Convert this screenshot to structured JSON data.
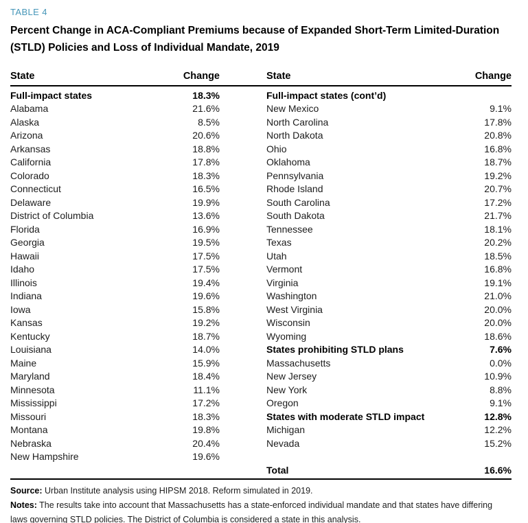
{
  "accent_color": "#4696b8",
  "table_label": "TABLE 4",
  "title_lines": [
    "Percent Change in ACA-Compliant Premiums because of Expanded Short-Term Limited-Duration",
    "(STLD) Policies and Loss of Individual Mandate, 2019"
  ],
  "table": {
    "headers": [
      "State",
      "Change",
      "State",
      "Change"
    ],
    "left_rows": [
      {
        "state": "Full-impact states",
        "change": "18.3%",
        "bold": true
      },
      {
        "state": "Alabama",
        "change": "21.6%",
        "bold": false
      },
      {
        "state": "Alaska",
        "change": "8.5%",
        "bold": false
      },
      {
        "state": "Arizona",
        "change": "20.6%",
        "bold": false
      },
      {
        "state": "Arkansas",
        "change": "18.8%",
        "bold": false
      },
      {
        "state": "California",
        "change": "17.8%",
        "bold": false
      },
      {
        "state": "Colorado",
        "change": "18.3%",
        "bold": false
      },
      {
        "state": "Connecticut",
        "change": "16.5%",
        "bold": false
      },
      {
        "state": "Delaware",
        "change": "19.9%",
        "bold": false
      },
      {
        "state": "District of Columbia",
        "change": "13.6%",
        "bold": false
      },
      {
        "state": "Florida",
        "change": "16.9%",
        "bold": false
      },
      {
        "state": "Georgia",
        "change": "19.5%",
        "bold": false
      },
      {
        "state": "Hawaii",
        "change": "17.5%",
        "bold": false
      },
      {
        "state": "Idaho",
        "change": "17.5%",
        "bold": false
      },
      {
        "state": "Illinois",
        "change": "19.4%",
        "bold": false
      },
      {
        "state": "Indiana",
        "change": "19.6%",
        "bold": false
      },
      {
        "state": "Iowa",
        "change": "15.8%",
        "bold": false
      },
      {
        "state": "Kansas",
        "change": "19.2%",
        "bold": false
      },
      {
        "state": "Kentucky",
        "change": "18.7%",
        "bold": false
      },
      {
        "state": "Louisiana",
        "change": "14.0%",
        "bold": false
      },
      {
        "state": "Maine",
        "change": "15.9%",
        "bold": false
      },
      {
        "state": "Maryland",
        "change": "18.4%",
        "bold": false
      },
      {
        "state": "Minnesota",
        "change": "11.1%",
        "bold": false
      },
      {
        "state": "Mississippi",
        "change": "17.2%",
        "bold": false
      },
      {
        "state": "Missouri",
        "change": "18.3%",
        "bold": false
      },
      {
        "state": "Montana",
        "change": "19.8%",
        "bold": false
      },
      {
        "state": "Nebraska",
        "change": "20.4%",
        "bold": false
      },
      {
        "state": "New Hampshire",
        "change": "19.6%",
        "bold": false
      },
      {
        "state": "",
        "change": "",
        "bold": false
      }
    ],
    "right_rows": [
      {
        "state": "Full-impact states (cont’d)",
        "change": "",
        "bold": true
      },
      {
        "state": "New Mexico",
        "change": "9.1%",
        "bold": false
      },
      {
        "state": "North Carolina",
        "change": "17.8%",
        "bold": false
      },
      {
        "state": "North Dakota",
        "change": "20.8%",
        "bold": false
      },
      {
        "state": "Ohio",
        "change": "16.8%",
        "bold": false
      },
      {
        "state": "Oklahoma",
        "change": "18.7%",
        "bold": false
      },
      {
        "state": "Pennsylvania",
        "change": "19.2%",
        "bold": false
      },
      {
        "state": "Rhode Island",
        "change": "20.7%",
        "bold": false
      },
      {
        "state": "South Carolina",
        "change": "17.2%",
        "bold": false
      },
      {
        "state": "South Dakota",
        "change": "21.7%",
        "bold": false
      },
      {
        "state": "Tennessee",
        "change": "18.1%",
        "bold": false
      },
      {
        "state": "Texas",
        "change": "20.2%",
        "bold": false
      },
      {
        "state": "Utah",
        "change": "18.5%",
        "bold": false
      },
      {
        "state": "Vermont",
        "change": "16.8%",
        "bold": false
      },
      {
        "state": "Virginia",
        "change": "19.1%",
        "bold": false
      },
      {
        "state": "Washington",
        "change": "21.0%",
        "bold": false
      },
      {
        "state": "West Virginia",
        "change": "20.0%",
        "bold": false
      },
      {
        "state": "Wisconsin",
        "change": "20.0%",
        "bold": false
      },
      {
        "state": "Wyoming",
        "change": "18.6%",
        "bold": false
      },
      {
        "state": "States prohibiting STLD plans",
        "change": "7.6%",
        "bold": true
      },
      {
        "state": "Massachusetts",
        "change": "0.0%",
        "bold": false
      },
      {
        "state": "New Jersey",
        "change": "10.9%",
        "bold": false
      },
      {
        "state": "New York",
        "change": "8.8%",
        "bold": false
      },
      {
        "state": "Oregon",
        "change": "9.1%",
        "bold": false
      },
      {
        "state": "States with moderate STLD impact",
        "change": "12.8%",
        "bold": true
      },
      {
        "state": "Michigan",
        "change": "12.2%",
        "bold": false
      },
      {
        "state": "Nevada",
        "change": "15.2%",
        "bold": false
      },
      {
        "state": "",
        "change": "",
        "bold": false
      },
      {
        "state": "Total",
        "change": "16.6%",
        "bold": true
      }
    ]
  },
  "footer": {
    "source_label": "Source:",
    "source_text": " Urban Institute analysis using HIPSM 2018. Reform simulated in 2019.",
    "notes_label": "Notes:",
    "notes_text": " The results take into account that Massachusetts has a state-enforced individual mandate and that states have differing laws governing STLD policies. The District of Columbia is considered a state in this analysis."
  }
}
